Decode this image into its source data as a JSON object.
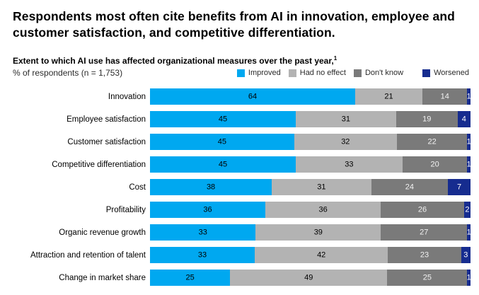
{
  "header": {
    "title": "Respondents most often cite benefits from AI in innovation, employee and customer satisfaction, and competitive differentiation.",
    "subtitle": "Extent to which AI use has affected organizational measures over the past year,",
    "subtitle_footnote_marker": "1",
    "respondents_note": "% of respondents (n = 1,753)"
  },
  "chart_data": {
    "type": "bar",
    "orientation": "horizontal",
    "stacked": true,
    "unit": "% of respondents",
    "xlim": [
      0,
      100
    ],
    "legend_position": "top-right",
    "grid": false,
    "categories": [
      "Innovation",
      "Employee satisfaction",
      "Customer satisfaction",
      "Competitive differentiation",
      "Cost",
      "Profitability",
      "Organic revenue growth",
      "Attraction and retention of talent",
      "Change in market share"
    ],
    "series": [
      {
        "name": "Improved",
        "color": "#00A8F0",
        "label_color": "#000000",
        "values": [
          64,
          45,
          45,
          45,
          38,
          36,
          33,
          33,
          25
        ]
      },
      {
        "name": "Had no effect",
        "color": "#B3B3B3",
        "label_color": "#000000",
        "values": [
          21,
          31,
          32,
          33,
          31,
          36,
          39,
          42,
          49
        ]
      },
      {
        "name": "Don't know",
        "color": "#7A7A7A",
        "label_color": "#F2F2F2",
        "values": [
          14,
          19,
          22,
          20,
          24,
          26,
          27,
          23,
          25
        ]
      },
      {
        "name": "Worsened",
        "color": "#162C8F",
        "label_color": "#FFFFFF",
        "values": [
          1,
          4,
          1,
          1,
          7,
          2,
          1,
          3,
          1
        ]
      }
    ]
  }
}
